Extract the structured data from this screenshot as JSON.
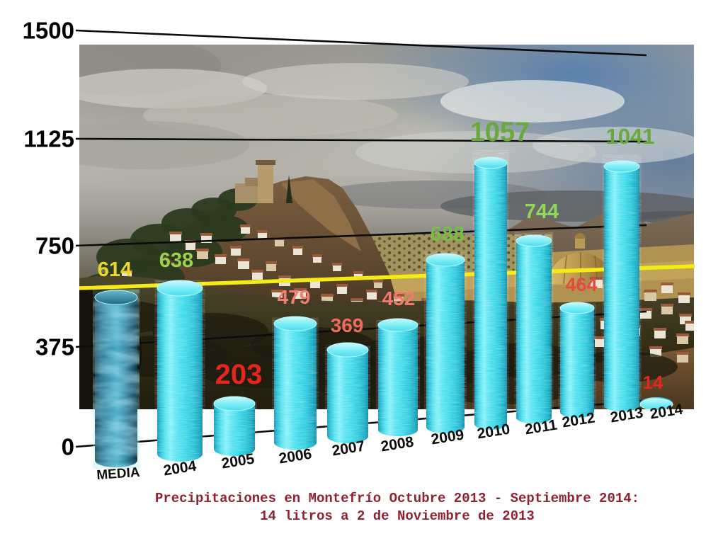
{
  "chart_data": {
    "type": "bar",
    "title": "Precipitaciones en Montefrío Octubre 2013 - Septiembre 2014: 14 litros a 2 de Noviembre de 2013",
    "caption_line1": "Precipitaciones en Montefrío Octubre 2013 - Septiembre 2014:",
    "caption_line2": "14 litros a 2 de Noviembre de 2013",
    "caption_color": "#8e2233",
    "categories": [
      "MEDIA",
      "2004",
      "2005",
      "2006",
      "2007",
      "2008",
      "2009",
      "2010",
      "2011",
      "2012",
      "2013",
      "2014"
    ],
    "values": [
      614,
      638,
      203,
      479,
      369,
      452,
      688,
      1057,
      744,
      464,
      1041,
      14
    ],
    "value_label_colors": [
      "#e8d82a",
      "#9ad14d",
      "#e6261c",
      "#f27e72",
      "#f06a5e",
      "#f27b6e",
      "#79bd41",
      "#68a93c",
      "#92d65a",
      "#e64a3f",
      "#68a93c",
      "#e6261c"
    ],
    "y_ticks": [
      "1500",
      "1125",
      "750",
      "375",
      "0"
    ],
    "ylim": [
      0,
      1500
    ],
    "grid": "perspective horizontal gridlines",
    "legend_position": "none",
    "bar_color": "#35d6e8",
    "media_bar_color": "#2e8cac",
    "average_line": {
      "label_value": 614,
      "color": "#f3eb16"
    },
    "background": "photo of Montefrío hilltop village"
  }
}
